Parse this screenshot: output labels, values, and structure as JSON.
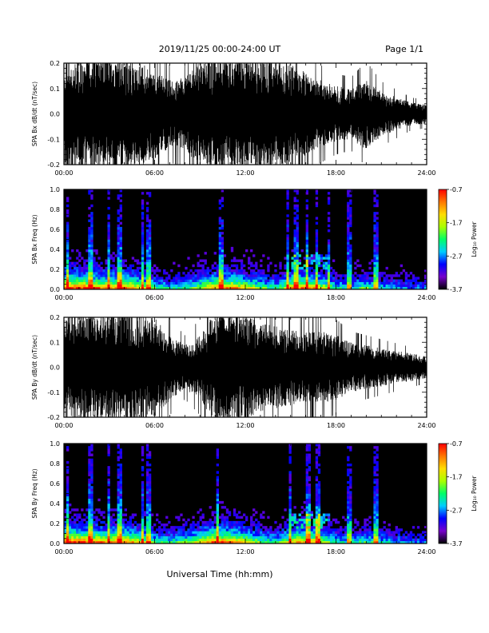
{
  "header": {
    "title": "2019/11/25  00:00-24:00 UT",
    "page_label": "Page 1/1"
  },
  "footer": {
    "xlabel": "Universal Time (hh:mm)"
  },
  "colorbar": {
    "label": "Log₁₀ Power",
    "tick_labels": [
      "-0.7",
      "-1.7",
      "-2.7",
      "-3.7"
    ],
    "ticks": [
      -0.7,
      -1.7,
      -2.7,
      -3.7
    ],
    "range": [
      -3.7,
      -0.7
    ],
    "colors": [
      "#000000",
      "#7700cc",
      "#0000ff",
      "#00ccff",
      "#00ff66",
      "#aaff00",
      "#ffdd00",
      "#ff7700",
      "#ff0000"
    ]
  },
  "chart_data": [
    {
      "type": "line",
      "ylabel": "SPA Bx dB/dt (nT/sec)",
      "xlim": [
        0,
        24
      ],
      "ylim": [
        -0.2,
        0.2
      ],
      "x_tick_labels": [
        "00:00",
        "06:00",
        "12:00",
        "18:00",
        "24:00"
      ],
      "y_tick_labels": [
        "0.2",
        "0.1",
        "0.0",
        "-0.1",
        "-0.2"
      ],
      "y_ticks": [
        0.2,
        0.1,
        0.0,
        -0.1,
        -0.2
      ],
      "series": [
        {
          "color": "#000000",
          "envelope_hours": [
            0,
            1,
            2,
            3,
            4,
            5,
            6,
            7,
            8,
            9,
            10,
            11,
            12,
            13,
            14,
            15,
            16,
            17,
            18,
            19,
            20,
            21,
            22,
            23,
            24
          ],
          "envelope_amplitude": [
            0.2,
            0.2,
            0.2,
            0.2,
            0.2,
            0.19,
            0.16,
            0.12,
            0.13,
            0.19,
            0.2,
            0.2,
            0.2,
            0.2,
            0.2,
            0.18,
            0.15,
            0.12,
            0.1,
            0.09,
            0.13,
            0.08,
            0.06,
            0.04,
            0.035
          ]
        }
      ]
    },
    {
      "type": "heatmap",
      "ylabel": "SPA Bx Freq (Hz)",
      "xlim": [
        0,
        24
      ],
      "ylim": [
        0,
        1.0
      ],
      "x_tick_labels": [
        "00:00",
        "06:00",
        "12:00",
        "18:00",
        "24:00"
      ],
      "y_tick_labels": [
        "1.0",
        "0.8",
        "0.6",
        "0.4",
        "0.2",
        "0.0"
      ],
      "y_ticks": [
        1.0,
        0.8,
        0.6,
        0.4,
        0.2,
        0.0
      ],
      "color_range": [
        -3.7,
        -0.7
      ],
      "time_bins": 150,
      "freq_bins": 40,
      "activity_hours": [
        0,
        1,
        2,
        3,
        4,
        5,
        6,
        7,
        8,
        9,
        10,
        11,
        12,
        13,
        14,
        15,
        16,
        17,
        18,
        19,
        20,
        21,
        22,
        23,
        24
      ],
      "activity_level": [
        0.95,
        0.9,
        0.85,
        0.8,
        0.85,
        0.7,
        0.5,
        0.4,
        0.45,
        0.6,
        0.8,
        0.85,
        0.7,
        0.55,
        0.45,
        0.75,
        0.85,
        0.7,
        0.45,
        0.4,
        0.55,
        0.4,
        0.35,
        0.3,
        0.3
      ],
      "bright_columns_hours": [
        0.2,
        1.8,
        3.0,
        3.7,
        5.2,
        5.6,
        10.4,
        14.8,
        15.4,
        16.1,
        16.7,
        17.5,
        18.9,
        20.6
      ],
      "enhanced_band": {
        "hours": [
          15.0,
          17.4
        ],
        "freq": [
          0.2,
          0.35
        ]
      }
    },
    {
      "type": "line",
      "ylabel": "SPA By dB/dt (nT/sec)",
      "xlim": [
        0,
        24
      ],
      "ylim": [
        -0.2,
        0.2
      ],
      "x_tick_labels": [
        "00:00",
        "06:00",
        "12:00",
        "18:00",
        "24:00"
      ],
      "y_tick_labels": [
        "0.2",
        "0.1",
        "0.0",
        "-0.1",
        "-0.2"
      ],
      "y_ticks": [
        0.2,
        0.1,
        0.0,
        -0.1,
        -0.2
      ],
      "series": [
        {
          "color": "#000000",
          "envelope_hours": [
            0,
            1,
            2,
            3,
            4,
            5,
            6,
            7,
            8,
            9,
            10,
            11,
            12,
            13,
            14,
            15,
            16,
            17,
            18,
            19,
            20,
            21,
            22,
            23,
            24
          ],
          "envelope_amplitude": [
            0.2,
            0.2,
            0.2,
            0.2,
            0.2,
            0.2,
            0.18,
            0.12,
            0.08,
            0.12,
            0.2,
            0.2,
            0.2,
            0.16,
            0.15,
            0.14,
            0.13,
            0.13,
            0.12,
            0.09,
            0.08,
            0.07,
            0.06,
            0.05,
            0.04
          ]
        }
      ]
    },
    {
      "type": "heatmap",
      "ylabel": "SPA By Freq (Hz)",
      "xlim": [
        0,
        24
      ],
      "ylim": [
        0,
        1.0
      ],
      "x_tick_labels": [
        "00:00",
        "06:00",
        "12:00",
        "18:00",
        "24:00"
      ],
      "y_tick_labels": [
        "1.0",
        "0.8",
        "0.6",
        "0.4",
        "0.2",
        "0.0"
      ],
      "y_ticks": [
        1.0,
        0.8,
        0.6,
        0.4,
        0.2,
        0.0
      ],
      "color_range": [
        -3.7,
        -0.7
      ],
      "time_bins": 150,
      "freq_bins": 40,
      "activity_hours": [
        0,
        1,
        2,
        3,
        4,
        5,
        6,
        7,
        8,
        9,
        10,
        11,
        12,
        13,
        14,
        15,
        16,
        17,
        18,
        19,
        20,
        21,
        22,
        23,
        24
      ],
      "activity_level": [
        0.95,
        0.9,
        0.85,
        0.8,
        0.85,
        0.7,
        0.5,
        0.45,
        0.55,
        0.7,
        0.9,
        0.85,
        0.7,
        0.55,
        0.45,
        0.7,
        0.8,
        0.65,
        0.45,
        0.4,
        0.5,
        0.4,
        0.35,
        0.3,
        0.3
      ],
      "bright_columns_hours": [
        0.2,
        1.8,
        3.0,
        3.7,
        5.2,
        5.6,
        10.2,
        15.0,
        16.2,
        16.8,
        18.9,
        20.6
      ],
      "enhanced_band": {
        "hours": [
          15.0,
          17.6
        ],
        "freq": [
          0.15,
          0.3
        ]
      }
    }
  ]
}
